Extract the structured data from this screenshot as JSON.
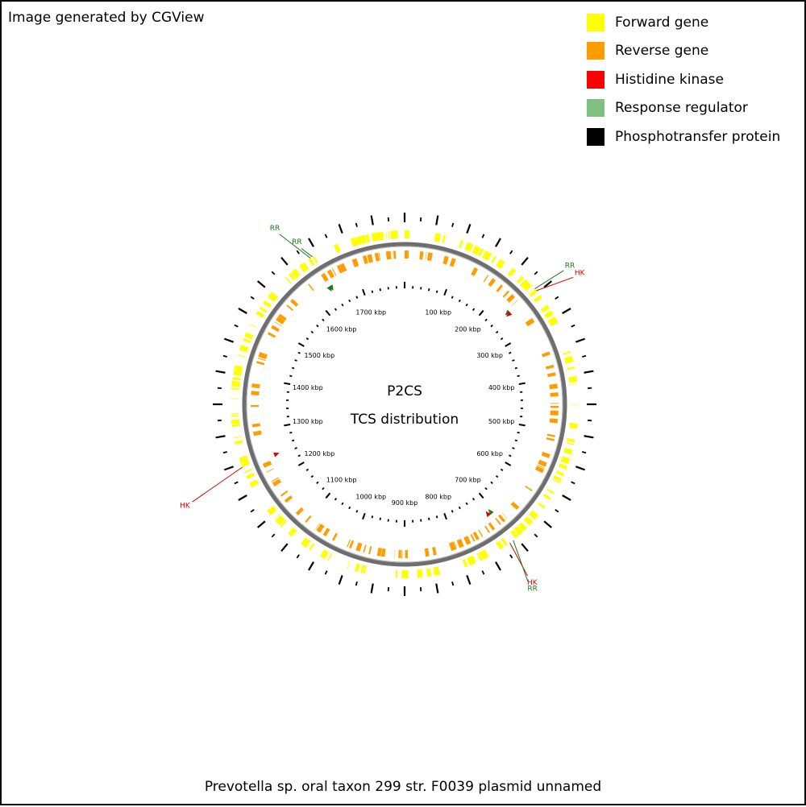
{
  "header": {
    "generated_by": "Image generated by CGView"
  },
  "legend": [
    {
      "label": "Forward gene",
      "color": "#ffff00"
    },
    {
      "label": "Reverse gene",
      "color": "#ff9d00"
    },
    {
      "label": "Histidine kinase",
      "color": "#ff0000"
    },
    {
      "label": "Response regulator",
      "color": "#80c080"
    },
    {
      "label": "Phosphotransfer protein",
      "color": "#000000"
    }
  ],
  "center": {
    "line1": "P2CS",
    "line2": "TCS distribution"
  },
  "caption": "Prevotella sp. oral taxon 299 str. F0039 plasmid unnamed",
  "scale": {
    "total_kbp": 1800,
    "labels": [
      "100 kbp",
      "200 kbp",
      "300 kbp",
      "400 kbp",
      "500 kbp",
      "600 kbp",
      "700 kbp",
      "800 kbp",
      "900 kbp",
      "1000 kbp",
      "1100 kbp",
      "1200 kbp",
      "1300 kbp",
      "1400 kbp",
      "1500 kbp",
      "1600 kbp",
      "1700 kbp"
    ]
  },
  "callouts": [
    {
      "label": "RR",
      "color": "#1a7a1a",
      "type": "response-regulator",
      "kbp": 1636
    },
    {
      "label": "RR",
      "color": "#1a7a1a",
      "type": "response-regulator",
      "kbp": 1640
    },
    {
      "label": "RR",
      "color": "#1a7a1a",
      "type": "response-regulator",
      "kbp": 242
    },
    {
      "label": "HK",
      "color": "#e00000",
      "type": "histidine-kinase",
      "kbp": 246
    },
    {
      "label": "HK",
      "color": "#e00000",
      "type": "histidine-kinase",
      "kbp": 1244
    },
    {
      "label": "HK",
      "color": "#e00000",
      "type": "histidine-kinase",
      "kbp": 714
    },
    {
      "label": "RR",
      "color": "#1a7a1a",
      "type": "response-regulator",
      "kbp": 707
    }
  ]
}
